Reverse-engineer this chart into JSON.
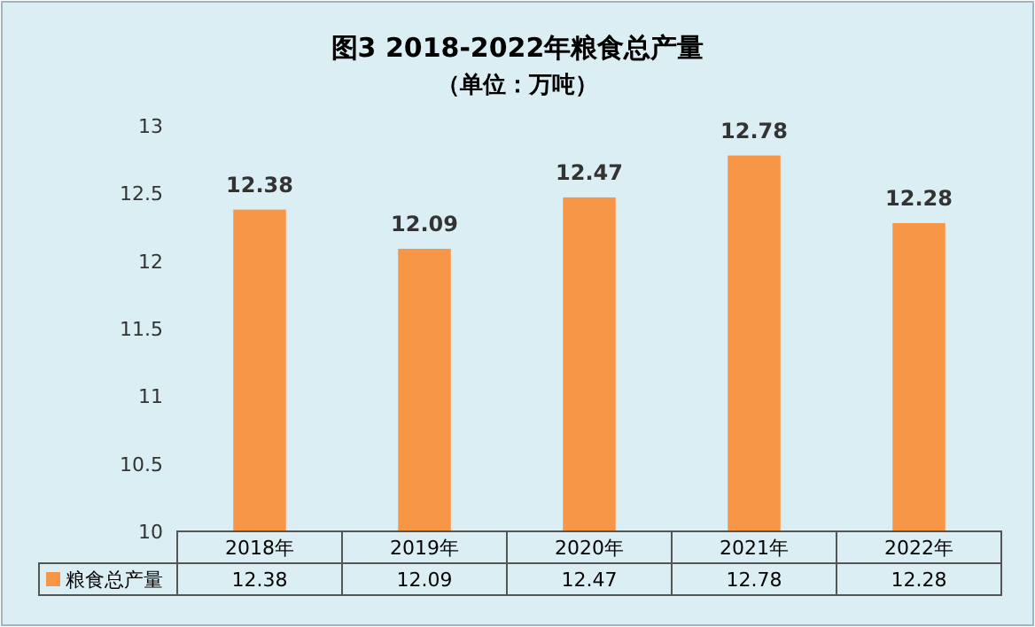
{
  "chart_data": {
    "type": "bar",
    "title": "图3  2018-2022年粮食总产量",
    "subtitle": "（单位：万吨）",
    "categories": [
      "2018年",
      "2019年",
      "2020年",
      "2021年",
      "2022年"
    ],
    "series": [
      {
        "name": "粮食总产量",
        "color": "#f79646",
        "values": [
          12.38,
          12.09,
          12.47,
          12.78,
          12.28
        ],
        "value_labels": [
          "12.38",
          "12.09",
          "12.47",
          "12.78",
          "12.28"
        ]
      }
    ],
    "ylim": [
      10,
      13
    ],
    "yticks": [
      10,
      10.5,
      11,
      11.5,
      12,
      12.5,
      13
    ],
    "annotations": [
      "12.38",
      "12.09",
      "12.47",
      "12.78",
      "12.28"
    ],
    "data_labels": true,
    "legend": "bottom"
  }
}
